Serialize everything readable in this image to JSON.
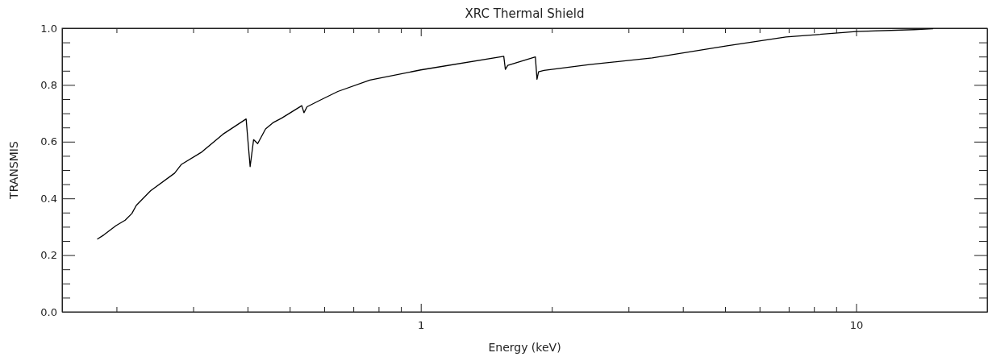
{
  "chart_data": {
    "type": "line",
    "title": "XRC Thermal Shield",
    "xlabel": "Energy (keV)",
    "ylabel": "TRANSMIS",
    "log": "x",
    "xlim": [
      0.15,
      20
    ],
    "xticks": [
      {
        "value": 0.2,
        "label": null
      },
      {
        "value": 0.3,
        "label": null
      },
      {
        "value": 0.4,
        "label": null
      },
      {
        "value": 0.5,
        "label": null
      },
      {
        "value": 0.6,
        "label": null
      },
      {
        "value": 0.7,
        "label": null
      },
      {
        "value": 0.8,
        "label": null
      },
      {
        "value": 0.9,
        "label": null
      },
      1,
      {
        "value": 2,
        "label": null
      },
      {
        "value": 3,
        "label": null
      },
      {
        "value": 4,
        "label": null
      },
      {
        "value": 5,
        "label": null
      },
      {
        "value": 6,
        "label": null
      },
      {
        "value": 7,
        "label": null
      },
      {
        "value": 8,
        "label": null
      },
      {
        "value": 9,
        "label": null
      },
      10
    ],
    "ylim": [
      0,
      1
    ],
    "yticks": [
      {
        "value": 0,
        "label": "0.0"
      },
      {
        "value": 0.05,
        "label": null
      },
      {
        "value": 0.1,
        "label": null
      },
      {
        "value": 0.15,
        "label": null
      },
      0.2,
      {
        "value": 0.25,
        "label": null
      },
      {
        "value": 0.3,
        "label": null
      },
      {
        "value": 0.35,
        "label": null
      },
      0.4,
      {
        "value": 0.45,
        "label": null
      },
      {
        "value": 0.5,
        "label": null
      },
      {
        "value": 0.55,
        "label": null
      },
      0.6,
      {
        "value": 0.65,
        "label": null
      },
      {
        "value": 0.7,
        "label": null
      },
      {
        "value": 0.75,
        "label": null
      },
      0.8,
      {
        "value": 0.85,
        "label": null
      },
      {
        "value": 0.9,
        "label": null
      },
      {
        "value": 0.95,
        "label": null
      },
      {
        "value": 1,
        "label": "1.0"
      }
    ],
    "line_style": "solid",
    "marker": "none",
    "series": [
      {
        "color": "#000000",
        "x": [
          0.181,
          0.187,
          0.1995,
          0.2094,
          0.217,
          0.222,
          0.2395,
          0.272,
          0.282,
          0.313,
          0.351,
          0.397,
          0.401,
          0.4055,
          0.413,
          0.422,
          0.44,
          0.459,
          0.479,
          0.533,
          0.539,
          0.548,
          0.585,
          0.645,
          0.764,
          1,
          1.551,
          1.564,
          1.584,
          1.833,
          1.849,
          1.864,
          1.918,
          2.44,
          3.4,
          5.05,
          6.9,
          10,
          13.6,
          15
        ],
        "values": [
          0.257,
          0.271,
          0.304,
          0.323,
          0.347,
          0.375,
          0.427,
          0.489,
          0.52,
          0.562,
          0.626,
          0.68,
          0.6,
          0.512,
          0.607,
          0.593,
          0.645,
          0.668,
          0.683,
          0.727,
          0.702,
          0.723,
          0.745,
          0.777,
          0.817,
          0.853,
          0.901,
          0.855,
          0.869,
          0.899,
          0.82,
          0.846,
          0.851,
          0.872,
          0.895,
          0.938,
          0.969,
          0.988,
          0.995,
          0.998
        ]
      }
    ]
  }
}
